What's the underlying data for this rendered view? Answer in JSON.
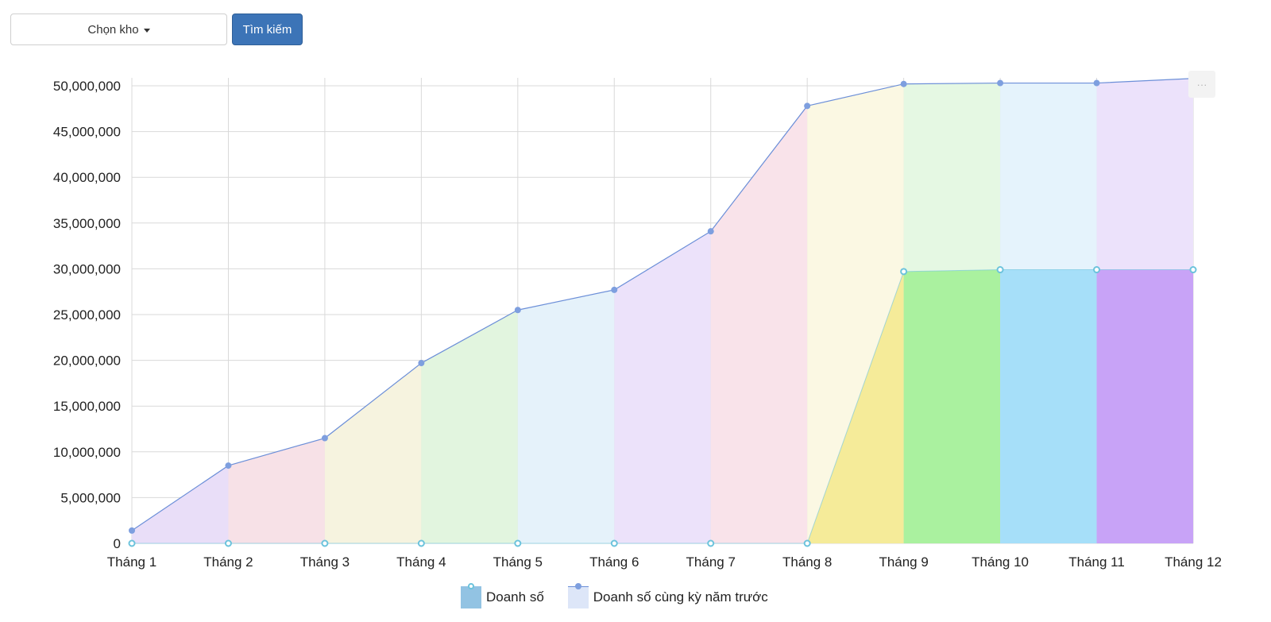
{
  "toolbar": {
    "select_label": "Chọn kho",
    "search_label": "Tìm kiếm"
  },
  "chart_menu": {
    "label": "···"
  },
  "colors": {
    "line": "#6c8fd8",
    "point": "#7e9fdf",
    "current_point_stroke": "#6cc3dc",
    "band_light": [
      "#e9def8",
      "#f7e1e7",
      "#f6f3df",
      "#e2f5df",
      "#e5f2fa",
      "#ece2fa",
      "#f9e3ea",
      "#fbf8e3",
      "#e5f8e3",
      "#e5f3fc",
      "#ece2fb"
    ],
    "band_strong": [
      "#e9def8",
      "#f7e1e7",
      "#f6f3df",
      "#e2f5df",
      "#e5f2fa",
      "#ece2fa",
      "#f9e3ea",
      "#f5eb99",
      "#aaf19f",
      "#a6dff9",
      "#c8a3f7"
    ],
    "legend_current": "#92c3e3",
    "legend_previous": "#dde6f8"
  },
  "chart_data": {
    "type": "area",
    "categories": [
      "Tháng 1",
      "Tháng 2",
      "Tháng 3",
      "Tháng 4",
      "Tháng 5",
      "Tháng 6",
      "Tháng 7",
      "Tháng 8",
      "Tháng 9",
      "Tháng 10",
      "Tháng 11",
      "Tháng 12"
    ],
    "series": [
      {
        "name": "Doanh số",
        "values": [
          0,
          0,
          0,
          0,
          0,
          0,
          0,
          0,
          29700000,
          29900000,
          29900000,
          29900000
        ]
      },
      {
        "name": "Doanh số cùng kỳ năm trước",
        "values": [
          1400000,
          8500000,
          11500000,
          19700000,
          25500000,
          27700000,
          34100000,
          47800000,
          50200000,
          50300000,
          50300000,
          50800000
        ]
      }
    ],
    "ylim": [
      0,
      50000000
    ],
    "yticks": [
      "0",
      "5,000,000",
      "10,000,000",
      "15,000,000",
      "20,000,000",
      "25,000,000",
      "30,000,000",
      "35,000,000",
      "40,000,000",
      "45,000,000",
      "50,000,000"
    ],
    "ytick_values": [
      0,
      5000000,
      10000000,
      15000000,
      20000000,
      25000000,
      30000000,
      35000000,
      40000000,
      45000000,
      50000000
    ],
    "grid": true,
    "legend_position": "bottom-center"
  }
}
